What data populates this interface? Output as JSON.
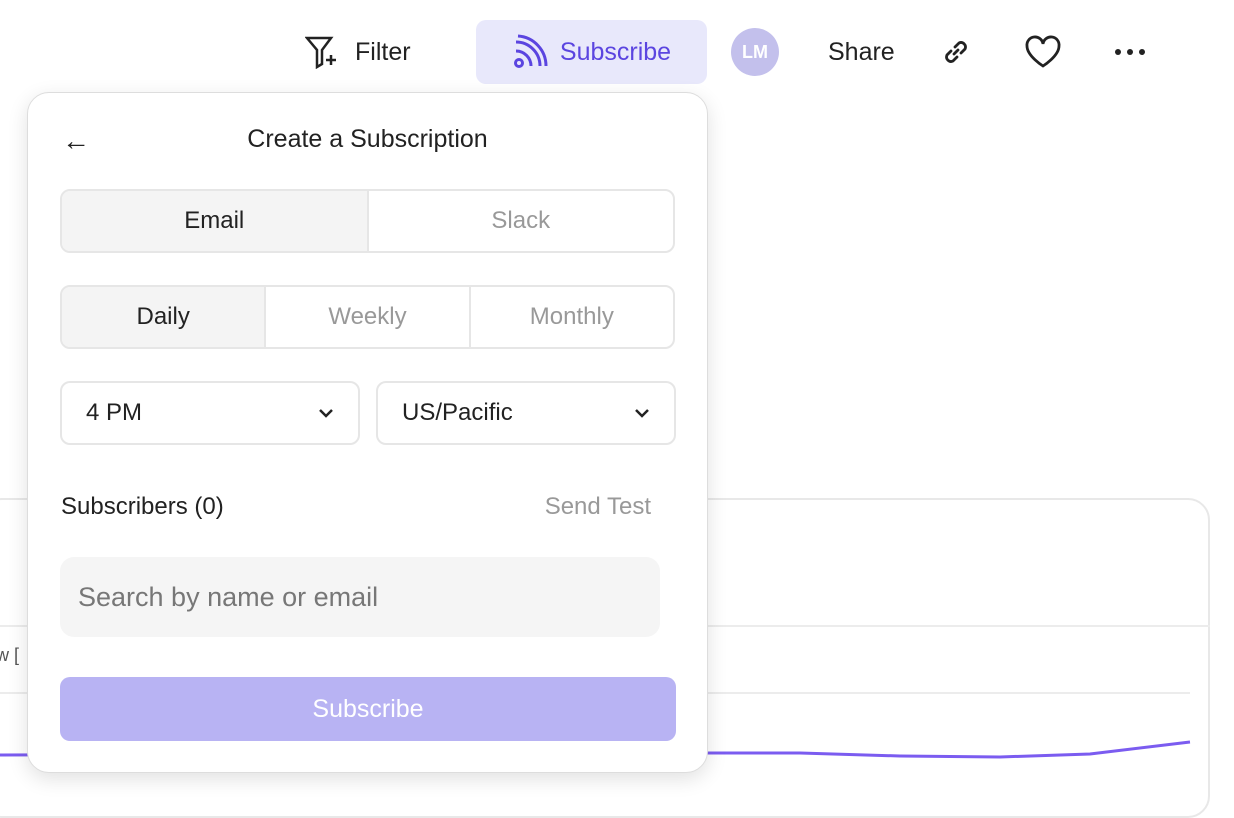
{
  "toolbar": {
    "filter": "Filter",
    "subscribe": "Subscribe",
    "avatar": "LM",
    "share": "Share"
  },
  "background": {
    "partial_text": "w ["
  },
  "popover": {
    "title": "Create a Subscription",
    "channels": [
      "Email",
      "Slack"
    ],
    "channel_selected": "Email",
    "frequencies": [
      "Daily",
      "Weekly",
      "Monthly"
    ],
    "frequency_selected": "Daily",
    "time": "4 PM",
    "timezone": "US/Pacific",
    "subscribers_label": "Subscribers (0)",
    "send_test": "Send Test",
    "search_placeholder": "Search by name or email",
    "subscribe_button": "Subscribe"
  },
  "colors": {
    "accent": "#5b45e0",
    "accent_light": "#e8e8fb",
    "button_disabled": "#b8b3f3",
    "line": "#7b5cf0"
  }
}
